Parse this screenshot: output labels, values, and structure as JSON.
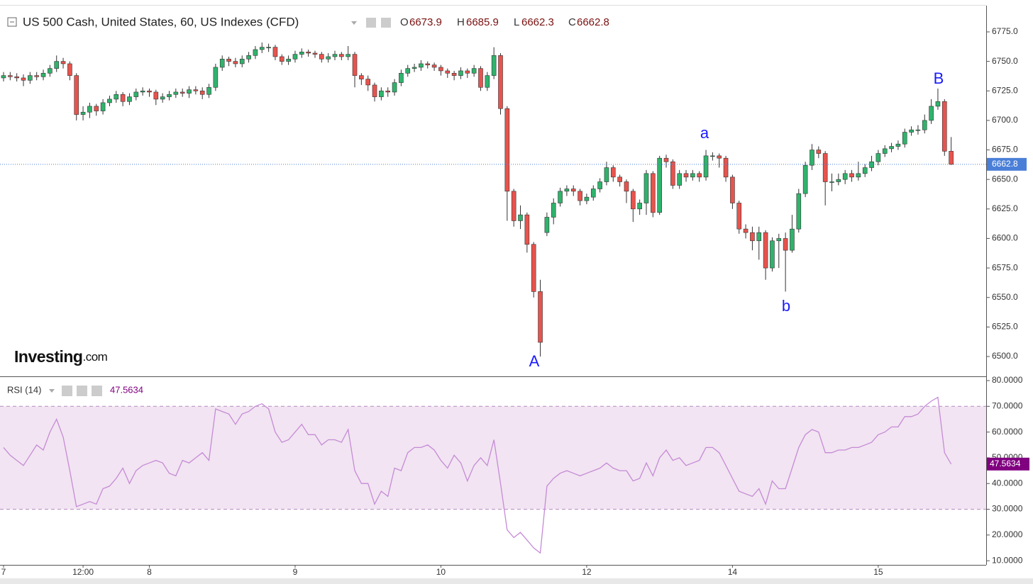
{
  "chart_data": [
    {
      "type": "candlestick",
      "title": "US 500 Cash, United States, 60, US Indexes (CFD)",
      "ohlc_labels": [
        "O",
        "H",
        "L",
        "C"
      ],
      "logo_main": "Investing",
      "logo_suffix": ".com",
      "annotations": [
        "A",
        "a",
        "b",
        "B"
      ],
      "annotation_color": "#1a1aff",
      "categories": [
        "7",
        null,
        null,
        null,
        null,
        null,
        null,
        null,
        null,
        null,
        null,
        null,
        "12:00",
        null,
        null,
        null,
        null,
        null,
        null,
        null,
        null,
        null,
        "8",
        null,
        null,
        null,
        null,
        null,
        null,
        null,
        null,
        null,
        null,
        null,
        null,
        null,
        null,
        null,
        null,
        null,
        null,
        null,
        null,
        null,
        "9",
        null,
        null,
        null,
        null,
        null,
        null,
        null,
        null,
        null,
        null,
        null,
        null,
        null,
        null,
        null,
        null,
        null,
        null,
        null,
        null,
        null,
        "10",
        null,
        null,
        null,
        null,
        null,
        null,
        null,
        null,
        null,
        null,
        null,
        null,
        null,
        null,
        null,
        null,
        null,
        null,
        null,
        null,
        null,
        "12",
        null,
        null,
        null,
        null,
        null,
        null,
        null,
        null,
        null,
        null,
        null,
        null,
        null,
        null,
        null,
        null,
        null,
        null,
        null,
        null,
        null,
        "14",
        null,
        null,
        null,
        null,
        null,
        null,
        null,
        null,
        null,
        null,
        null,
        null,
        null,
        null,
        null,
        null,
        null,
        null,
        null,
        null,
        null,
        "15",
        null,
        null,
        null,
        null,
        null,
        null,
        null,
        null,
        null,
        null,
        null
      ],
      "open": [
        6736,
        6738,
        6737,
        6736,
        6734,
        6738,
        6737,
        6740,
        6744,
        6750,
        6748,
        6738,
        6705,
        6707,
        6712,
        6708,
        6715,
        6718,
        6722,
        6716,
        6720,
        6724,
        6725,
        6724,
        6718,
        6720,
        6722,
        6724,
        6723,
        6726,
        6725,
        6722,
        6728,
        6745,
        6752,
        6750,
        6748,
        6752,
        6755,
        6760,
        6762,
        6762,
        6754,
        6750,
        6752,
        6756,
        6758,
        6757,
        6756,
        6752,
        6754,
        6756,
        6754,
        6756,
        6738,
        6735,
        6730,
        6720,
        6725,
        6724,
        6732,
        6740,
        6744,
        6745,
        6748,
        6747,
        6745,
        6742,
        6740,
        6738,
        6742,
        6740,
        6744,
        6728,
        6738,
        6755,
        6710,
        6640,
        6615,
        6620,
        6595,
        6555,
        6605,
        6618,
        6630,
        6640,
        6642,
        6640,
        6632,
        6635,
        6642,
        6648,
        6660,
        6652,
        6648,
        6640,
        6625,
        6630,
        6655,
        6622,
        6668,
        6665,
        6645,
        6655,
        6652,
        6655,
        6652,
        6670,
        6670,
        6668,
        6652,
        6630,
        6608,
        6605,
        6598,
        6605,
        6575,
        6598,
        6600,
        6590,
        6608,
        6638,
        6662,
        6675,
        6672,
        6648,
        6648,
        6650,
        6655,
        6652,
        6655,
        6660,
        6665,
        6672,
        6676,
        6678,
        6680,
        6690,
        6692,
        6692,
        6700,
        6712,
        6716,
        6673.9
      ],
      "high": [
        6741,
        6741,
        6740,
        6739,
        6741,
        6741,
        6743,
        6747,
        6755,
        6753,
        6750,
        6740,
        6712,
        6715,
        6714,
        6718,
        6721,
        6725,
        6724,
        6723,
        6727,
        6728,
        6727,
        6726,
        6723,
        6725,
        6727,
        6727,
        6729,
        6729,
        6728,
        6731,
        6748,
        6755,
        6754,
        6753,
        6755,
        6758,
        6763,
        6766,
        6765,
        6764,
        6756,
        6755,
        6759,
        6761,
        6760,
        6759,
        6758,
        6757,
        6759,
        6758,
        6763,
        6758,
        6740,
        6738,
        6732,
        6728,
        6728,
        6735,
        6743,
        6747,
        6748,
        6751,
        6750,
        6749,
        6747,
        6744,
        6742,
        6745,
        6744,
        6747,
        6746,
        6741,
        6762,
        6757,
        6712,
        6642,
        6628,
        6622,
        6597,
        6565,
        6622,
        6634,
        6643,
        6645,
        6645,
        6642,
        6638,
        6645,
        6651,
        6665,
        6662,
        6654,
        6650,
        6642,
        6633,
        6658,
        6657,
        6670,
        6671,
        6667,
        6658,
        6658,
        6658,
        6657,
        6675,
        6673,
        6672,
        6670,
        6654,
        6632,
        6612,
        6610,
        6610,
        6607,
        6601,
        6604,
        6605,
        6620,
        6642,
        6665,
        6680,
        6678,
        6674,
        6655,
        6655,
        6658,
        6658,
        6665,
        6663,
        6670,
        6675,
        6679,
        6681,
        6683,
        6693,
        6695,
        6696,
        6705,
        6718,
        6727,
        6718,
        6685.9
      ],
      "low": [
        6733,
        6734,
        6733,
        6729,
        6731,
        6734,
        6734,
        6737,
        6741,
        6744,
        6734,
        6700,
        6700,
        6702,
        6704,
        6705,
        6712,
        6715,
        6712,
        6713,
        6717,
        6721,
        6720,
        6713,
        6715,
        6717,
        6719,
        6720,
        6719,
        6722,
        6718,
        6719,
        6725,
        6742,
        6746,
        6745,
        6745,
        6749,
        6752,
        6757,
        6758,
        6751,
        6747,
        6747,
        6749,
        6753,
        6754,
        6753,
        6749,
        6749,
        6751,
        6751,
        6751,
        6728,
        6730,
        6725,
        6716,
        6717,
        6720,
        6721,
        6729,
        6737,
        6741,
        6742,
        6744,
        6742,
        6738,
        6736,
        6734,
        6735,
        6736,
        6737,
        6725,
        6725,
        6735,
        6705,
        6615,
        6610,
        6608,
        6588,
        6550,
        6500,
        6602,
        6612,
        6627,
        6636,
        6636,
        6628,
        6629,
        6632,
        6639,
        6645,
        6648,
        6644,
        6630,
        6614,
        6620,
        6620,
        6618,
        6620,
        6660,
        6642,
        6642,
        6648,
        6649,
        6648,
        6649,
        6666,
        6660,
        6648,
        6625,
        6604,
        6600,
        6590,
        6582,
        6565,
        6572,
        6575,
        6555,
        6588,
        6605,
        6635,
        6658,
        6668,
        6628,
        6640,
        6645,
        6646,
        6648,
        6649,
        6652,
        6657,
        6662,
        6669,
        6673,
        6675,
        6677,
        6687,
        6688,
        6689,
        6697,
        6709,
        6670,
        6662.3
      ],
      "close": [
        6738,
        6737,
        6736,
        6734,
        6738,
        6737,
        6740,
        6744,
        6750,
        6748,
        6738,
        6705,
        6707,
        6712,
        6708,
        6715,
        6718,
        6722,
        6716,
        6720,
        6724,
        6725,
        6724,
        6718,
        6720,
        6722,
        6724,
        6723,
        6726,
        6725,
        6722,
        6728,
        6745,
        6752,
        6750,
        6748,
        6752,
        6755,
        6760,
        6762,
        6762,
        6754,
        6750,
        6752,
        6756,
        6758,
        6757,
        6756,
        6752,
        6754,
        6756,
        6754,
        6756,
        6738,
        6735,
        6730,
        6720,
        6725,
        6724,
        6732,
        6740,
        6744,
        6745,
        6748,
        6747,
        6745,
        6742,
        6740,
        6738,
        6742,
        6740,
        6744,
        6728,
        6738,
        6755,
        6710,
        6640,
        6615,
        6620,
        6595,
        6555,
        6512,
        6618,
        6630,
        6640,
        6642,
        6640,
        6632,
        6635,
        6642,
        6648,
        6660,
        6652,
        6648,
        6640,
        6625,
        6630,
        6655,
        6622,
        6668,
        6665,
        6645,
        6655,
        6652,
        6655,
        6652,
        6670,
        6670,
        6668,
        6652,
        6630,
        6608,
        6605,
        6598,
        6605,
        6575,
        6598,
        6600,
        6590,
        6608,
        6638,
        6662,
        6675,
        6672,
        6648,
        6648,
        6650,
        6655,
        6652,
        6655,
        6660,
        6665,
        6672,
        6676,
        6678,
        6680,
        6690,
        6692,
        6692,
        6700,
        6712,
        6716,
        6673.9,
        6662.8
      ],
      "up_color": "#2fb36c",
      "down_color": "#e8534d",
      "last_price_color": "#4a7fd8",
      "ylim": [
        6483.8,
        6797.2
      ],
      "yticks": [
        {
          "value": 6500,
          "label": "6500.0"
        },
        {
          "value": 6525,
          "label": "6525.0"
        },
        {
          "value": 6550,
          "label": "6550.0"
        },
        {
          "value": 6575,
          "label": "6575.0"
        },
        {
          "value": 6600,
          "label": "6600.0"
        },
        {
          "value": 6625,
          "label": "6625.0"
        },
        {
          "value": 6650,
          "label": "6650.0"
        },
        {
          "value": 6675,
          "label": "6675.0"
        },
        {
          "value": 6700,
          "label": "6700.0"
        },
        {
          "value": 6725,
          "label": "6725.0"
        },
        {
          "value": 6750,
          "label": "6750.0"
        },
        {
          "value": 6775,
          "label": "6775.0"
        }
      ]
    },
    {
      "type": "line",
      "title": "RSI (14)",
      "color": "#c58bd6",
      "value_color": "#800080",
      "values": [
        54,
        51,
        49,
        47,
        51,
        55,
        53,
        60,
        65,
        58,
        45,
        31,
        32,
        33,
        32,
        38,
        39,
        42,
        46,
        40,
        45,
        47,
        48,
        49,
        48,
        44,
        43,
        49,
        48,
        50,
        52,
        49,
        69,
        68,
        67,
        63,
        67,
        68,
        70,
        71,
        69,
        60,
        56,
        57,
        60,
        63,
        59,
        59,
        55,
        57,
        57,
        56,
        61,
        45,
        40,
        40,
        32,
        37,
        35,
        46,
        45,
        52,
        54,
        54,
        55,
        53,
        49,
        46,
        51,
        48,
        41,
        47,
        50,
        47,
        57,
        40,
        22,
        19,
        21,
        18,
        15,
        13,
        39,
        42,
        44,
        45,
        44,
        43,
        44,
        45,
        46,
        48,
        46,
        45,
        45,
        41,
        42,
        48,
        43,
        50,
        53,
        49,
        50,
        47,
        48,
        49,
        54,
        54,
        52,
        47,
        42,
        37,
        36,
        35,
        38,
        32,
        41,
        38,
        38,
        46,
        54,
        59,
        61,
        60,
        52,
        52,
        53,
        53,
        54,
        54,
        55,
        56,
        59,
        60,
        62,
        62,
        66,
        66,
        67,
        70,
        72,
        73.5,
        52,
        47.5634
      ],
      "levels": [
        30,
        70
      ],
      "band_color": "#f2e4f2",
      "ylim": [
        8.4,
        81.1
      ],
      "yticks": [
        {
          "value": 10,
          "label": "10.0000"
        },
        {
          "value": 20,
          "label": "20.0000"
        },
        {
          "value": 30,
          "label": "30.0000"
        },
        {
          "value": 40,
          "label": "40.0000"
        },
        {
          "value": 50,
          "label": "50.0000"
        },
        {
          "value": 60,
          "label": "60.0000"
        },
        {
          "value": 70,
          "label": "70.0000"
        },
        {
          "value": 80,
          "label": "80.0000"
        }
      ]
    }
  ]
}
